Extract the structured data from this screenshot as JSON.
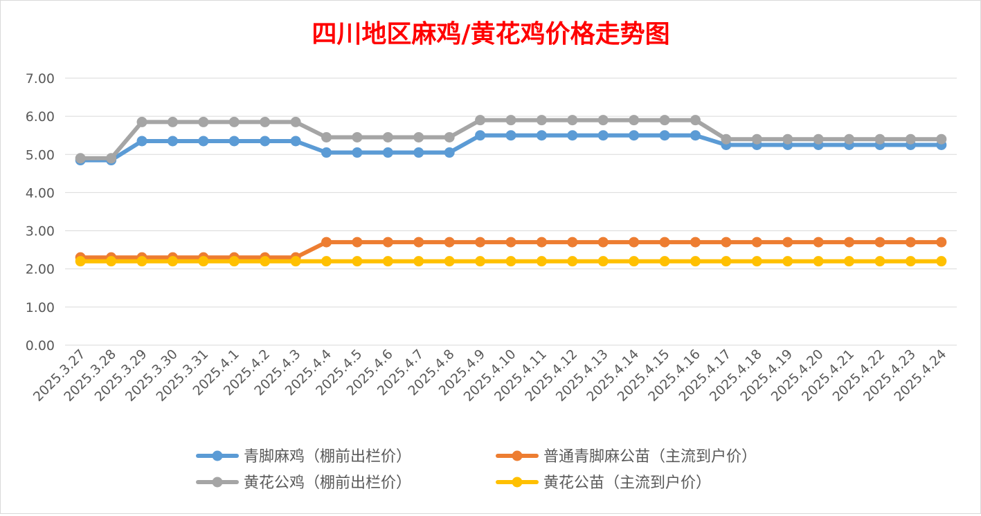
{
  "chart_data": {
    "type": "line",
    "title": "四川地区麻鸡/黄花鸡价格走势图",
    "xlabel": "",
    "ylabel": "",
    "ylim": [
      0,
      7
    ],
    "yticks": [
      "0.00",
      "1.00",
      "2.00",
      "3.00",
      "4.00",
      "5.00",
      "6.00",
      "7.00"
    ],
    "grid": true,
    "legend_position": "bottom",
    "categories": [
      "2025.3.27",
      "2025.3.28",
      "2025.3.29",
      "2025.3.30",
      "2025.3.31",
      "2025.4.1",
      "2025.4.2",
      "2025.4.3",
      "2025.4.4",
      "2025.4.5",
      "2025.4.6",
      "2025.4.7",
      "2025.4.8",
      "2025.4.9",
      "2025.4.10",
      "2025.4.11",
      "2025.4.12",
      "2025.4.13",
      "2025.4.14",
      "2025.4.15",
      "2025.4.16",
      "2025.4.17",
      "2025.4.18",
      "2025.4.19",
      "2025.4.20",
      "2025.4.21",
      "2025.4.22",
      "2025.4.23",
      "2025.4.24"
    ],
    "series": [
      {
        "name": "青脚麻鸡（棚前出栏价）",
        "color": "#5b9bd5",
        "values": [
          4.85,
          4.85,
          5.35,
          5.35,
          5.35,
          5.35,
          5.35,
          5.35,
          5.05,
          5.05,
          5.05,
          5.05,
          5.05,
          5.5,
          5.5,
          5.5,
          5.5,
          5.5,
          5.5,
          5.5,
          5.5,
          5.25,
          5.25,
          5.25,
          5.25,
          5.25,
          5.25,
          5.25,
          5.25
        ]
      },
      {
        "name": "普通青脚麻公苗（主流到户价）",
        "color": "#ed7d31",
        "values": [
          2.3,
          2.3,
          2.3,
          2.3,
          2.3,
          2.3,
          2.3,
          2.3,
          2.7,
          2.7,
          2.7,
          2.7,
          2.7,
          2.7,
          2.7,
          2.7,
          2.7,
          2.7,
          2.7,
          2.7,
          2.7,
          2.7,
          2.7,
          2.7,
          2.7,
          2.7,
          2.7,
          2.7,
          2.7
        ]
      },
      {
        "name": "黄花公鸡（棚前出栏价）",
        "color": "#a5a5a5",
        "values": [
          4.9,
          4.9,
          5.85,
          5.85,
          5.85,
          5.85,
          5.85,
          5.85,
          5.45,
          5.45,
          5.45,
          5.45,
          5.45,
          5.9,
          5.9,
          5.9,
          5.9,
          5.9,
          5.9,
          5.9,
          5.9,
          5.4,
          5.4,
          5.4,
          5.4,
          5.4,
          5.4,
          5.4,
          5.4
        ]
      },
      {
        "name": "黄花公苗（主流到户价）",
        "color": "#ffc000",
        "values": [
          2.2,
          2.2,
          2.2,
          2.2,
          2.2,
          2.2,
          2.2,
          2.2,
          2.2,
          2.2,
          2.2,
          2.2,
          2.2,
          2.2,
          2.2,
          2.2,
          2.2,
          2.2,
          2.2,
          2.2,
          2.2,
          2.2,
          2.2,
          2.2,
          2.2,
          2.2,
          2.2,
          2.2,
          2.2
        ]
      }
    ]
  }
}
